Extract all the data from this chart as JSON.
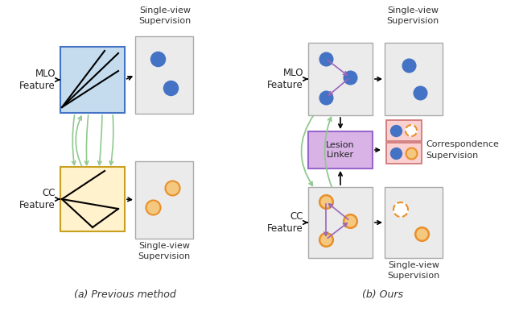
{
  "fig_width": 6.4,
  "fig_height": 3.87,
  "dpi": 100,
  "bg_color": "#ffffff",
  "blue_color": "#4472C4",
  "orange_color": "#E8902A",
  "orange_fill": "#F5C880",
  "green_arrow": "#90C890",
  "purple_arrow": "#9966BB",
  "mlo_box_blue": "#C5DCEE",
  "cc_box_yellow": "#FFF2CC",
  "cc_box_yellow_edge": "#C8A020",
  "lesion_linker_fill": "#D9B3E6",
  "lesion_linker_edge": "#9966CC",
  "corr_box_fill": "#FAD0D0",
  "corr_box_edge": "#D07878",
  "gray_box_fill": "#EBEBEB",
  "gray_box_edge": "#AAAAAA",
  "label_mlo": "MLO\nFeature",
  "label_cc": "CC\nFeature",
  "label_sv": "Single-view\nSupervision",
  "label_ll": "Lesion\nLinker",
  "label_corr": "Correspondence\nSupervision",
  "title_a": "(a) Previous method",
  "title_b": "(b) Ours"
}
